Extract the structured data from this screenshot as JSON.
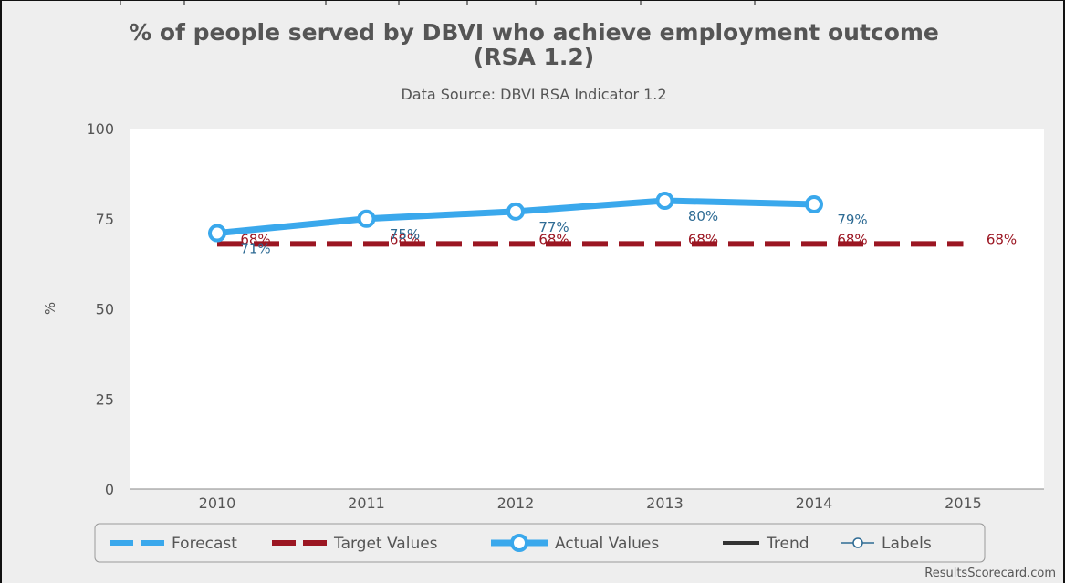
{
  "chart_data": {
    "type": "line",
    "title_lines": [
      "% of people served by DBVI who achieve employment outcome",
      "(RSA 1.2)"
    ],
    "subtitle": "Data Source: DBVI RSA Indicator 1.2",
    "ylabel": "%",
    "xlabel": "",
    "ylim": [
      0,
      100
    ],
    "yticks": [
      0,
      25,
      50,
      75,
      100
    ],
    "categories": [
      "2010",
      "2011",
      "2012",
      "2013",
      "2014",
      "2015"
    ],
    "grid": false,
    "legend_position": "bottom",
    "series": [
      {
        "name": "Actual Values",
        "color": "#3aa8ec",
        "values": [
          71,
          75,
          77,
          80,
          79,
          null
        ],
        "labels": [
          "71%",
          "75%",
          "77%",
          "80%",
          "79%",
          ""
        ]
      },
      {
        "name": "Target Values",
        "color": "#9b1622",
        "values": [
          68,
          68,
          68,
          68,
          68,
          68
        ],
        "labels": [
          "68%",
          "68%",
          "68%",
          "68%",
          "68%",
          "68%"
        ]
      }
    ],
    "legend": [
      {
        "name": "Forecast",
        "color": "#3aa8ec",
        "style": "dashed"
      },
      {
        "name": "Target Values",
        "color": "#9b1622",
        "style": "dashed"
      },
      {
        "name": "Actual Values",
        "color": "#3aa8ec",
        "style": "line-marker"
      },
      {
        "name": "Trend",
        "color": "#333333",
        "style": "solid"
      },
      {
        "name": "Labels",
        "color": "#2e6b94",
        "style": "thin-marker"
      }
    ]
  },
  "credit": "ResultsScorecard.com"
}
